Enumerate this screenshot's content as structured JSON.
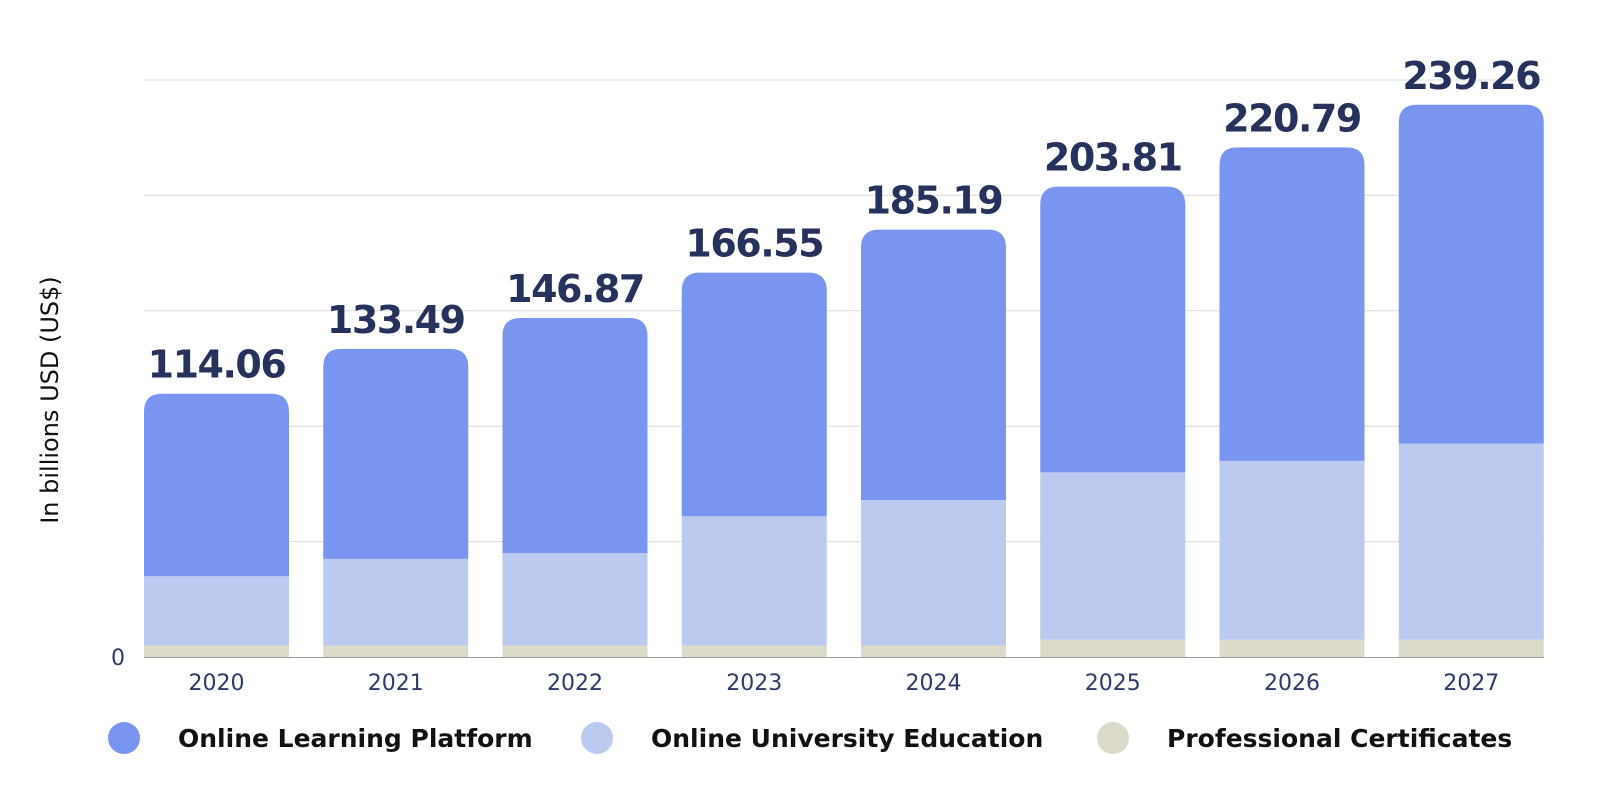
{
  "chart_data": {
    "type": "bar",
    "stacked": true,
    "ylabel": "In billions USD (US$)",
    "xlabel": "",
    "ylim": [
      0,
      250
    ],
    "y_ticks": [
      "0"
    ],
    "grid": true,
    "legend_position": "bottom",
    "categories": [
      "2020",
      "2021",
      "2022",
      "2023",
      "2024",
      "2025",
      "2026",
      "2027"
    ],
    "totals": [
      114.06,
      133.49,
      146.87,
      166.55,
      185.19,
      203.81,
      220.79,
      239.26
    ],
    "total_labels": [
      "114.06",
      "133.49",
      "146.87",
      "166.55",
      "185.19",
      "203.81",
      "220.79",
      "239.26"
    ],
    "series": [
      {
        "name": "Professional Certificates",
        "color": "#dcdacb",
        "values": [
          5.0,
          5.0,
          5.0,
          5.0,
          5.0,
          7.5,
          7.5,
          7.5
        ]
      },
      {
        "name": "Online University Education",
        "color": "#bccaef",
        "values": [
          30.0,
          37.5,
          40.0,
          56.0,
          63.0,
          72.5,
          77.5,
          85.0
        ]
      },
      {
        "name": "Online Learning Platform",
        "color": "#7a95f0",
        "values": [
          79.06,
          90.99,
          101.87,
          105.55,
          117.19,
          123.81,
          135.79,
          146.76
        ]
      }
    ]
  },
  "legend": {
    "items": [
      {
        "label": "Online Learning Platform",
        "color": "#7a95f0"
      },
      {
        "label": "Online University Education",
        "color": "#bccaef"
      },
      {
        "label": "Professional Certificates",
        "color": "#dcdacb"
      }
    ]
  }
}
